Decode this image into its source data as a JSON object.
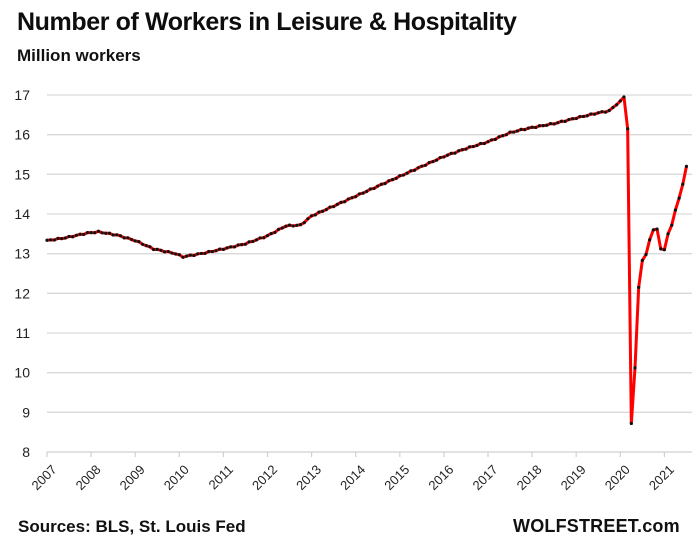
{
  "title": "Number of Workers in Leisure & Hospitality",
  "subtitle": "Million workers",
  "footer": {
    "source": "Sources: BLS, St. Louis Fed",
    "brand": "WOLFSTREET.com"
  },
  "colors": {
    "line": "#ff0000",
    "markers": "#111111",
    "grid": "#d9d9d9"
  },
  "chart_data": {
    "type": "line",
    "title": "Number of Workers in Leisure & Hospitality",
    "subtitle": "Million workers",
    "xlabel": "",
    "ylabel": "Million workers",
    "ylim": [
      8,
      17
    ],
    "yticks": [
      8,
      9,
      10,
      11,
      12,
      13,
      14,
      15,
      16,
      17
    ],
    "xticks": [
      "2007",
      "2008",
      "2009",
      "2010",
      "2011",
      "2012",
      "2013",
      "2014",
      "2015",
      "2016",
      "2017",
      "2018",
      "2019",
      "2020",
      "2021"
    ],
    "grid": "horizontal",
    "legend": "none",
    "frequency": "monthly",
    "start": "2007-01",
    "end": "2021-07",
    "series": [
      {
        "name": "Leisure & Hospitality employment",
        "anchors": [
          {
            "date": "2007-01",
            "value": 13.33
          },
          {
            "date": "2007-06",
            "value": 13.4
          },
          {
            "date": "2007-12",
            "value": 13.52
          },
          {
            "date": "2008-03",
            "value": 13.55
          },
          {
            "date": "2008-08",
            "value": 13.47
          },
          {
            "date": "2009-01",
            "value": 13.33
          },
          {
            "date": "2009-06",
            "value": 13.12
          },
          {
            "date": "2009-12",
            "value": 13.0
          },
          {
            "date": "2010-02",
            "value": 12.92
          },
          {
            "date": "2010-08",
            "value": 13.02
          },
          {
            "date": "2011-01",
            "value": 13.12
          },
          {
            "date": "2011-07",
            "value": 13.25
          },
          {
            "date": "2012-01",
            "value": 13.45
          },
          {
            "date": "2012-06",
            "value": 13.7
          },
          {
            "date": "2012-10",
            "value": 13.72
          },
          {
            "date": "2013-01",
            "value": 13.95
          },
          {
            "date": "2013-07",
            "value": 14.2
          },
          {
            "date": "2014-01",
            "value": 14.45
          },
          {
            "date": "2014-07",
            "value": 14.7
          },
          {
            "date": "2015-01",
            "value": 14.95
          },
          {
            "date": "2015-07",
            "value": 15.2
          },
          {
            "date": "2016-01",
            "value": 15.45
          },
          {
            "date": "2016-07",
            "value": 15.65
          },
          {
            "date": "2017-01",
            "value": 15.82
          },
          {
            "date": "2017-07",
            "value": 16.05
          },
          {
            "date": "2017-10",
            "value": 16.12
          },
          {
            "date": "2018-01",
            "value": 16.18
          },
          {
            "date": "2018-07",
            "value": 16.28
          },
          {
            "date": "2019-01",
            "value": 16.42
          },
          {
            "date": "2019-07",
            "value": 16.55
          },
          {
            "date": "2019-10",
            "value": 16.6
          },
          {
            "date": "2020-01",
            "value": 16.85
          },
          {
            "date": "2020-02",
            "value": 16.95
          },
          {
            "date": "2020-03",
            "value": 16.15
          },
          {
            "date": "2020-04",
            "value": 8.72
          },
          {
            "date": "2020-05",
            "value": 10.12
          },
          {
            "date": "2020-06",
            "value": 12.15
          },
          {
            "date": "2020-07",
            "value": 12.83
          },
          {
            "date": "2020-08",
            "value": 12.98
          },
          {
            "date": "2020-09",
            "value": 13.35
          },
          {
            "date": "2020-10",
            "value": 13.6
          },
          {
            "date": "2020-11",
            "value": 13.62
          },
          {
            "date": "2020-12",
            "value": 13.12
          },
          {
            "date": "2021-01",
            "value": 13.1
          },
          {
            "date": "2021-02",
            "value": 13.5
          },
          {
            "date": "2021-03",
            "value": 13.72
          },
          {
            "date": "2021-04",
            "value": 14.1
          },
          {
            "date": "2021-05",
            "value": 14.4
          },
          {
            "date": "2021-06",
            "value": 14.75
          },
          {
            "date": "2021-07",
            "value": 15.2
          }
        ]
      }
    ]
  }
}
